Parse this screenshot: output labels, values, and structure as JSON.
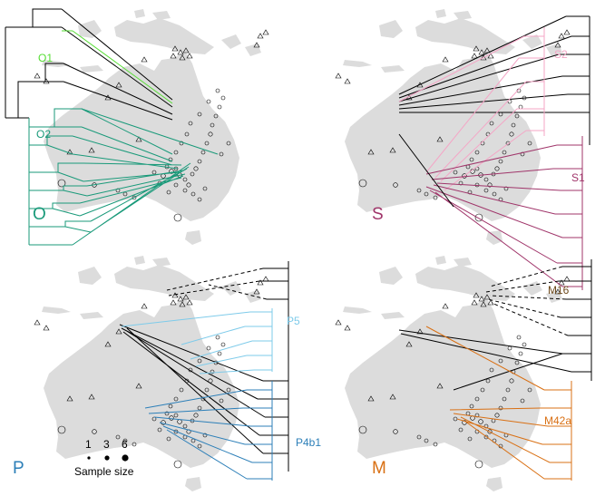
{
  "colors": {
    "land": "#dcdcdc",
    "tree": "#000000",
    "O": "#1a9a7a",
    "O1": "#55dd33",
    "S": "#a0356a",
    "S2": "#f4a6c6",
    "P": "#2c7fb8",
    "P5": "#7ecbea",
    "M": "#d97014",
    "M16": "#6e4a1c",
    "highlight": "#e8e84a"
  },
  "panels": [
    {
      "id": "O",
      "label": "O",
      "label_color": "#1a9a7a",
      "clades": [
        {
          "label": "O1",
          "color": "#55dd33"
        },
        {
          "label": "O2",
          "color": "#1a9a7a"
        }
      ]
    },
    {
      "id": "S",
      "label": "S",
      "label_color": "#a0356a",
      "clades": [
        {
          "label": "S2",
          "color": "#f4a6c6"
        },
        {
          "label": "S1",
          "color": "#a0356a"
        }
      ]
    },
    {
      "id": "P",
      "label": "P",
      "label_color": "#2c7fb8",
      "clades": [
        {
          "label": "P5",
          "color": "#7ecbea"
        },
        {
          "label": "P4b1",
          "color": "#2c7fb8"
        }
      ]
    },
    {
      "id": "M",
      "label": "M",
      "label_color": "#d97014",
      "clades": [
        {
          "label": "M16",
          "color": "#6e4a1c"
        },
        {
          "label": "M42a",
          "color": "#d97014"
        }
      ]
    }
  ],
  "legend": {
    "title": "Sample size",
    "sizes": [
      "1",
      "3",
      "6"
    ]
  }
}
